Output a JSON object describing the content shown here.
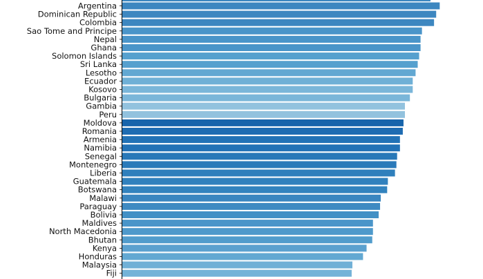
{
  "chart_data": {
    "type": "bar",
    "orientation": "horizontal",
    "title": "",
    "xlabel": "",
    "ylabel": "",
    "grid": false,
    "categories": [
      "Argentina",
      "Dominican Republic",
      "Colombia",
      "Sao Tome and Principe",
      "Nepal",
      "Ghana",
      "Solomon Islands",
      "Sri Lanka",
      "Lesotho",
      "Ecuador",
      "Kosovo",
      "Bulgaria",
      "Gambia",
      "Peru",
      "Moldova",
      "Romania",
      "Armenia",
      "Namibia",
      "Senegal",
      "Montenegro",
      "Liberia",
      "Guatemala",
      "Botswana",
      "Malawi",
      "Paraguay",
      "Bolivia",
      "Maldives",
      "North Macedonia",
      "Bhutan",
      "Kenya",
      "Honduras",
      "Malaysia",
      "Fiji"
    ],
    "values": [
      447,
      442,
      439,
      422,
      420,
      420,
      418,
      416,
      413,
      409,
      409,
      405,
      398,
      398,
      396,
      395,
      391,
      391,
      387,
      386,
      384,
      374,
      373,
      364,
      363,
      361,
      353,
      353,
      352,
      344,
      339,
      324,
      323
    ],
    "xlim": [
      0,
      470
    ],
    "colors": [
      "#3d87c0",
      "#3d87c0",
      "#3d87c0",
      "#4a95c9",
      "#4a95c9",
      "#4a95c9",
      "#56a0ce",
      "#56a0ce",
      "#62a8d2",
      "#6fb0d6",
      "#7ab6d9",
      "#7ab6d9",
      "#92c2de",
      "#92c2de",
      "#1764ab",
      "#1e6cb2",
      "#2272b6",
      "#2272b6",
      "#2878b8",
      "#2a7ab9",
      "#2f7fbc",
      "#3181bd",
      "#3383be",
      "#3a86c0",
      "#3e8ac2",
      "#4290c5",
      "#4a95c9",
      "#4e99cb",
      "#519ccc",
      "#5ba1cf",
      "#62a8d2",
      "#70b0d6",
      "#74b3d8"
    ]
  }
}
